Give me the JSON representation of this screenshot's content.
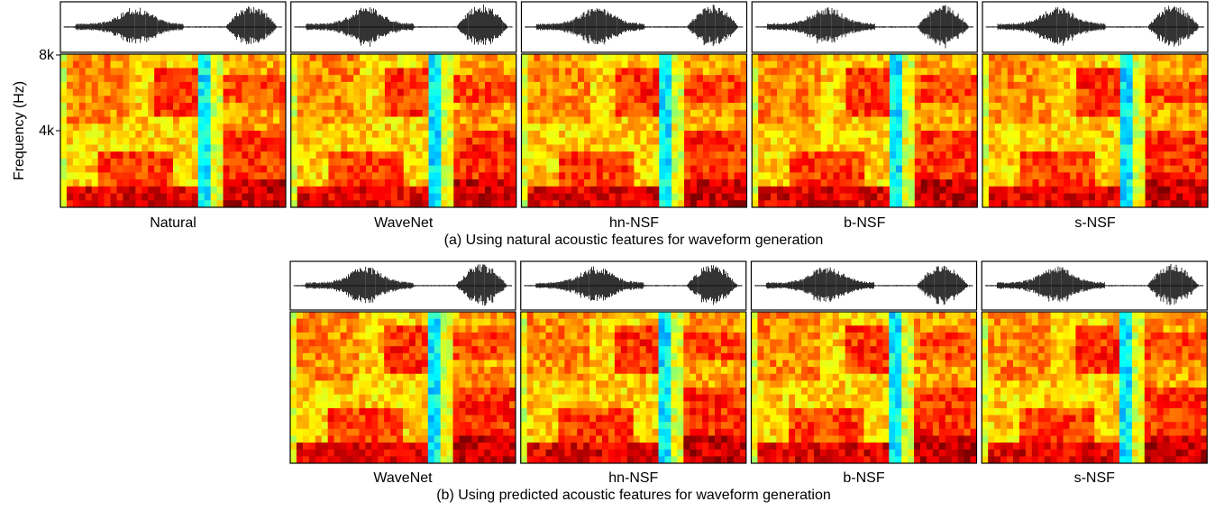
{
  "y_axis": {
    "label": "Frequency (Hz)",
    "ticks": [
      "8k",
      "4k"
    ]
  },
  "rows": [
    {
      "panels": [
        "Natural",
        "WaveNet",
        "hn-NSF",
        "b-NSF",
        "s-NSF"
      ],
      "caption": "(a) Using natural acoustic features for waveform generation"
    },
    {
      "panels": [
        "WaveNet",
        "hn-NSF",
        "b-NSF",
        "s-NSF"
      ],
      "caption": "(b) Using predicted acoustic features for waveform generation"
    }
  ]
}
